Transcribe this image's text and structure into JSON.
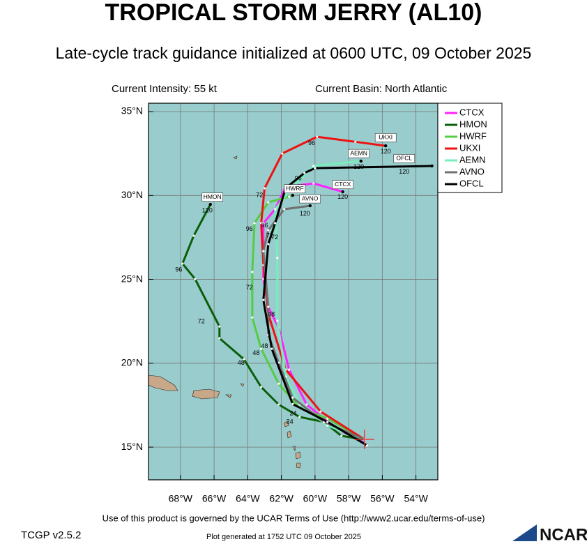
{
  "chart_data": {
    "type": "track-map",
    "title": "TROPICAL STORM JERRY (AL10)",
    "subtitle": "Late-cycle track guidance initialized at 0600 UTC, 09 October 2025",
    "intensity_label": "Current Intensity: 55 kt",
    "basin_label": "Current Basin: North Atlantic",
    "xlim": [
      -69.9,
      -52.7
    ],
    "ylim": [
      13.05,
      35.5
    ],
    "xticks": [
      {
        "value": -68,
        "label": "68°W"
      },
      {
        "value": -66,
        "label": "66°W"
      },
      {
        "value": -64,
        "label": "64°W"
      },
      {
        "value": -62,
        "label": "62°W"
      },
      {
        "value": -60,
        "label": "60°W"
      },
      {
        "value": -58,
        "label": "58°W"
      },
      {
        "value": -56,
        "label": "56°W"
      },
      {
        "value": -54,
        "label": "54°W"
      }
    ],
    "yticks": [
      {
        "value": 15,
        "label": "15°N"
      },
      {
        "value": 20,
        "label": "20°N"
      },
      {
        "value": 25,
        "label": "25°N"
      },
      {
        "value": 30,
        "label": "30°N"
      },
      {
        "value": 35,
        "label": "35°N"
      }
    ],
    "grid": true,
    "current_position": {
      "lon": -57.06,
      "lat": 15.46,
      "color": "#ee2222"
    },
    "series": [
      {
        "name": "CTCX",
        "color": "#ff22ff",
        "lon": [
          -57.06,
          -58.85,
          -60.5,
          -61.54,
          -62.16,
          -62.78,
          -63.07,
          -63.07,
          -62.37,
          -61.75,
          -60.09,
          -58.35
        ],
        "lat": [
          15.25,
          16.2,
          17.54,
          19.62,
          22.11,
          23.36,
          25.02,
          28.35,
          29.18,
          30.51,
          30.72,
          30.22
        ],
        "box": {
          "lon": -58.35,
          "lat": 30.65
        },
        "hours": [
          {
            "text": "120",
            "lon": -58.35,
            "lat": 29.9
          },
          {
            "text": "48",
            "lon": -62.6,
            "lat": 22.9
          },
          {
            "text": "96",
            "lon": -63.0,
            "lat": 28.2
          }
        ]
      },
      {
        "name": "HMON",
        "color": "#0a5e0a",
        "lon": [
          -57.06,
          -58.43,
          -59.47,
          -60.92,
          -62.16,
          -63.2,
          -64.23,
          -65.68,
          -65.68,
          -67.13,
          -67.88,
          -67.21,
          -66.22
        ],
        "lat": [
          15.46,
          15.67,
          16.5,
          16.8,
          17.54,
          18.58,
          20.24,
          21.49,
          22.19,
          25.02,
          25.94,
          27.6,
          29.47
        ],
        "box": {
          "lon": -66.1,
          "lat": 29.9
        },
        "hours": [
          {
            "text": "120",
            "lon": -66.4,
            "lat": 29.1
          },
          {
            "text": "48",
            "lon": -64.4,
            "lat": 20.0
          },
          {
            "text": "72",
            "lon": -66.76,
            "lat": 22.48
          },
          {
            "text": "96",
            "lon": -68.1,
            "lat": 25.56
          }
        ]
      },
      {
        "name": "HWRF",
        "color": "#55cc44",
        "lon": [
          -57.06,
          -59.26,
          -60.92,
          -62.16,
          -63.2,
          -63.73,
          -63.73,
          -63.6,
          -62.78,
          -61.54,
          -61.33
        ],
        "lat": [
          15.46,
          16.7,
          17.33,
          18.78,
          20.86,
          22.73,
          25.44,
          28.35,
          29.59,
          29.93,
          30.01
        ],
        "box": {
          "lon": -61.2,
          "lat": 30.4
        },
        "hours": [
          {
            "text": "24",
            "lon": -61.5,
            "lat": 16.5
          },
          {
            "text": "48",
            "lon": -63.5,
            "lat": 20.6
          },
          {
            "text": "72",
            "lon": -63.9,
            "lat": 24.5
          },
          {
            "text": "96",
            "lon": -63.9,
            "lat": 28.0
          }
        ]
      },
      {
        "name": "UKXI",
        "color": "#ee1111",
        "lon": [
          -57.06,
          -59.67,
          -61.74,
          -62.78,
          -63.07,
          -63.2,
          -63.0,
          -61.95,
          -59.88,
          -57.6,
          -55.8
        ],
        "lat": [
          15.46,
          17.12,
          19.62,
          22.94,
          25.85,
          28.35,
          30.43,
          32.5,
          33.5,
          33.2,
          32.96
        ],
        "box": {
          "lon": -55.8,
          "lat": 33.45
        },
        "hours": [
          {
            "text": "120",
            "lon": -55.8,
            "lat": 32.6
          },
          {
            "text": "96",
            "lon": -60.2,
            "lat": 33.1
          },
          {
            "text": "72",
            "lon": -63.3,
            "lat": 30.0
          }
        ]
      },
      {
        "name": "AEMN",
        "color": "#77eebb",
        "lon": [
          -57.06,
          -59.26,
          -60.92,
          -61.74,
          -62.24,
          -62.24,
          -62.37,
          -61.33,
          -60.09,
          -57.27
        ],
        "lat": [
          15.46,
          16.29,
          17.54,
          19.2,
          22.53,
          26.27,
          29.18,
          30.51,
          31.76,
          32.05
        ],
        "box": {
          "lon": -57.4,
          "lat": 32.5
        },
        "hours": [
          {
            "text": "120",
            "lon": -57.4,
            "lat": 31.7
          }
        ]
      },
      {
        "name": "AVNO",
        "color": "#707070",
        "lon": [
          -57.06,
          -59.47,
          -61.33,
          -62.16,
          -62.78,
          -62.78,
          -63.07,
          -62.78,
          -61.83,
          -60.29
        ],
        "lat": [
          15.46,
          16.5,
          17.95,
          20.03,
          21.69,
          23.36,
          26.68,
          27.93,
          29.18,
          29.39
        ],
        "box": {
          "lon": -60.3,
          "lat": 29.8
        },
        "hours": [
          {
            "text": "120",
            "lon": -60.6,
            "lat": 28.9
          },
          {
            "text": "72",
            "lon": -62.4,
            "lat": 27.5
          }
        ]
      },
      {
        "name": "OFCL",
        "color": "#000000",
        "lon": [
          -56.9,
          -59.26,
          -61.33,
          -62.57,
          -63.07,
          -62.78,
          -62.37,
          -61.75,
          -60.63,
          -60.0,
          -53.05
        ],
        "lat": [
          15.1,
          16.5,
          17.57,
          20.86,
          23.77,
          27.1,
          28.35,
          30.43,
          31.34,
          31.63,
          31.76
        ],
        "box": {
          "lon": -54.7,
          "lat": 32.2
        },
        "hours": [
          {
            "text": "120",
            "lon": -54.7,
            "lat": 31.4
          },
          {
            "text": "96",
            "lon": -61.0,
            "lat": 31.0
          },
          {
            "text": "72",
            "lon": -62.7,
            "lat": 27.6
          },
          {
            "text": "48",
            "lon": -63.0,
            "lat": 21.0
          },
          {
            "text": "24",
            "lon": -61.3,
            "lat": 17.0
          }
        ]
      }
    ],
    "legend": "outside-right"
  },
  "footer": {
    "terms": "Use of this product is governed by the UCAR Terms of Use (http://www2.ucar.edu/terms-of-use)",
    "version": "TCGP v2.5.2",
    "generated": "Plot generated at 1752 UTC   09 October 2025",
    "logo": "NCAR"
  }
}
